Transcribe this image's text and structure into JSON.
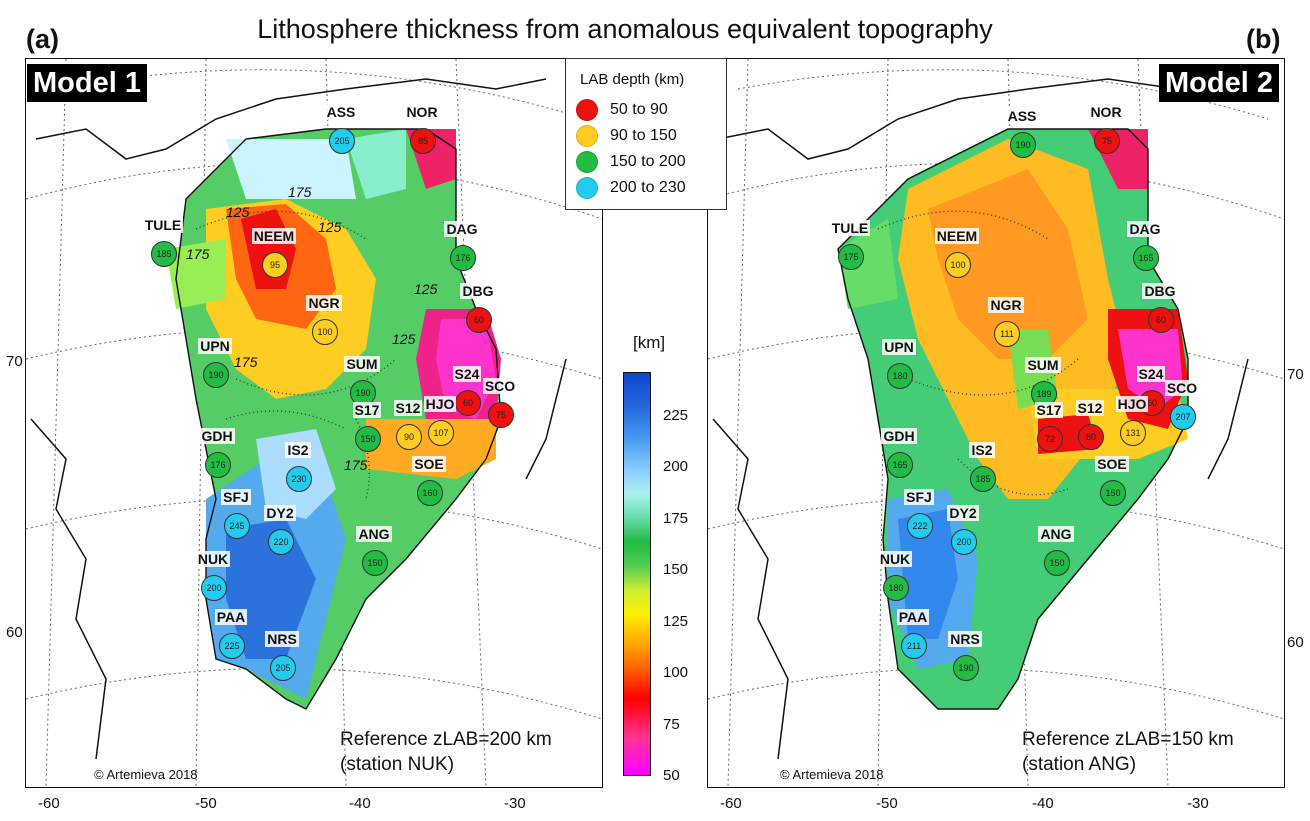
{
  "title": "Lithosphere thickness from anomalous equivalent topography",
  "panels": {
    "a": {
      "letter": "(a)",
      "model": "Model 1",
      "reference_line1": "Reference zLAB=200 km",
      "reference_line2": "(station NUK)",
      "copyright": "© Artemieva 2018",
      "contour_labels": [
        "125",
        "175",
        "125",
        "125",
        "175",
        "175",
        "125",
        "175"
      ],
      "stations": [
        {
          "name": "ASS",
          "value": "205",
          "class": "cyan"
        },
        {
          "name": "NOR",
          "value": "85",
          "class": "red"
        },
        {
          "name": "TULE",
          "value": "185",
          "class": "green"
        },
        {
          "name": "NEEM",
          "value": "95",
          "class": "orange"
        },
        {
          "name": "DAG",
          "value": "176",
          "class": "green"
        },
        {
          "name": "NGR",
          "value": "100",
          "class": "orange"
        },
        {
          "name": "DBG",
          "value": "60",
          "class": "red"
        },
        {
          "name": "UPN",
          "value": "190",
          "class": "green"
        },
        {
          "name": "SUM",
          "value": "190",
          "class": "green"
        },
        {
          "name": "S24",
          "value": "60",
          "class": "red"
        },
        {
          "name": "SCO",
          "value": "75",
          "class": "red"
        },
        {
          "name": "S17",
          "value": "150",
          "class": "green"
        },
        {
          "name": "S12",
          "value": "90",
          "class": "orange"
        },
        {
          "name": "HJO",
          "value": "107",
          "class": "orange"
        },
        {
          "name": "GDH",
          "value": "176",
          "class": "green"
        },
        {
          "name": "IS2",
          "value": "230",
          "class": "cyan"
        },
        {
          "name": "SOE",
          "value": "160",
          "class": "green"
        },
        {
          "name": "SFJ",
          "value": "245",
          "class": "cyan"
        },
        {
          "name": "DY2",
          "value": "220",
          "class": "cyan"
        },
        {
          "name": "ANG",
          "value": "150",
          "class": "green"
        },
        {
          "name": "NUK",
          "value": "200",
          "class": "cyan"
        },
        {
          "name": "PAA",
          "value": "225",
          "class": "cyan"
        },
        {
          "name": "NRS",
          "value": "205",
          "class": "cyan"
        }
      ]
    },
    "b": {
      "letter": "(b)",
      "model": "Model 2",
      "reference_line1": "Reference zLAB=150 km",
      "reference_line2": "(station ANG)",
      "copyright": "© Artemieva 2018",
      "stations": [
        {
          "name": "ASS",
          "value": "190",
          "class": "green"
        },
        {
          "name": "NOR",
          "value": "75",
          "class": "red"
        },
        {
          "name": "TULE",
          "value": "175",
          "class": "green"
        },
        {
          "name": "NEEM",
          "value": "100",
          "class": "orange"
        },
        {
          "name": "DAG",
          "value": "165",
          "class": "green"
        },
        {
          "name": "NGR",
          "value": "111",
          "class": "orange"
        },
        {
          "name": "DBG",
          "value": "60",
          "class": "red"
        },
        {
          "name": "UPN",
          "value": "180",
          "class": "green"
        },
        {
          "name": "SUM",
          "value": "189",
          "class": "green"
        },
        {
          "name": "S24",
          "value": "60",
          "class": "red"
        },
        {
          "name": "SCO",
          "value": "207",
          "class": "cyan"
        },
        {
          "name": "S17",
          "value": "72",
          "class": "red"
        },
        {
          "name": "S12",
          "value": "80",
          "class": "red"
        },
        {
          "name": "HJO",
          "value": "131",
          "class": "orange"
        },
        {
          "name": "GDH",
          "value": "165",
          "class": "green"
        },
        {
          "name": "IS2",
          "value": "185",
          "class": "green"
        },
        {
          "name": "SOE",
          "value": "150",
          "class": "green"
        },
        {
          "name": "SFJ",
          "value": "222",
          "class": "cyan"
        },
        {
          "name": "DY2",
          "value": "200",
          "class": "cyan"
        },
        {
          "name": "ANG",
          "value": "150",
          "class": "green"
        },
        {
          "name": "NUK",
          "value": "180",
          "class": "green"
        },
        {
          "name": "PAA",
          "value": "211",
          "class": "cyan"
        },
        {
          "name": "NRS",
          "value": "190",
          "class": "green"
        }
      ]
    }
  },
  "legend": {
    "title": "LAB depth (km)",
    "items": [
      {
        "label": "50  to  90",
        "color": "#ee1111"
      },
      {
        "label": "90  to  150",
        "color": "#ffcc22"
      },
      {
        "label": "150  to  200",
        "color": "#22bb44"
      },
      {
        "label": "200  to  230",
        "color": "#22ccee"
      }
    ]
  },
  "colorbar": {
    "unit": "[km]",
    "ticks": [
      "225",
      "200",
      "175",
      "150",
      "125",
      "100",
      "75",
      "50"
    ],
    "range": [
      50,
      240
    ]
  },
  "axes": {
    "longitude_ticks_a": [
      "-60",
      "-50",
      "-40",
      "-30"
    ],
    "longitude_ticks_b": [
      "-60",
      "-50",
      "-40",
      "-30"
    ],
    "latitude_ticks_a": [
      "70",
      "60"
    ],
    "latitude_ticks_b": [
      "70",
      "60"
    ]
  },
  "colors": {
    "red": "#ee1111",
    "orange": "#ffcc22",
    "green": "#22bb44",
    "cyan": "#22ccee"
  }
}
